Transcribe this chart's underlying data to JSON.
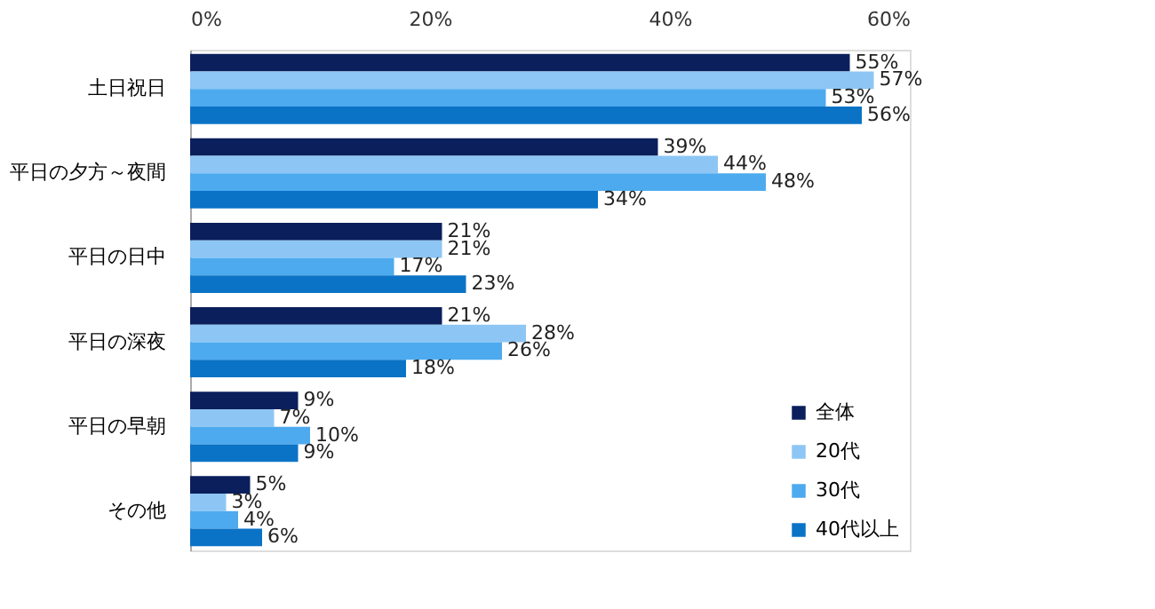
{
  "chart_data": {
    "type": "bar",
    "orientation": "horizontal",
    "categories": [
      "土日祝日",
      "平日の夕方～夜間",
      "平日の日中",
      "平日の深夜",
      "平日の早朝",
      "その他"
    ],
    "series": [
      {
        "name": "全体",
        "color": "#0a1f5c",
        "values": [
          55,
          39,
          21,
          21,
          9,
          5
        ],
        "value_labels": [
          "55%",
          "39%",
          "21%",
          "21%",
          "9%",
          "5%"
        ]
      },
      {
        "name": "20代",
        "color": "#8dc6f4",
        "values": [
          57,
          44,
          21,
          28,
          7,
          3
        ],
        "value_labels": [
          "57%",
          "44%",
          "21%",
          "28%",
          "7%",
          "3%"
        ]
      },
      {
        "name": "30代",
        "color": "#4daaef",
        "values": [
          53,
          48,
          17,
          26,
          10,
          4
        ],
        "value_labels": [
          "53%",
          "48%",
          "17%",
          "26%",
          "10%",
          "4%"
        ]
      },
      {
        "name": "40代以上",
        "color": "#0b73c6",
        "values": [
          56,
          34,
          23,
          18,
          9,
          6
        ],
        "value_labels": [
          "56%",
          "34%",
          "23%",
          "18%",
          "9%",
          "6%"
        ]
      }
    ],
    "xlim": [
      0,
      60
    ],
    "xticks": [
      {
        "value": 0,
        "label": "0%"
      },
      {
        "value": 20,
        "label": "20%"
      },
      {
        "value": 40,
        "label": "40%"
      },
      {
        "value": 60,
        "label": "60%"
      }
    ],
    "grid": false,
    "legend": "bottom right"
  }
}
